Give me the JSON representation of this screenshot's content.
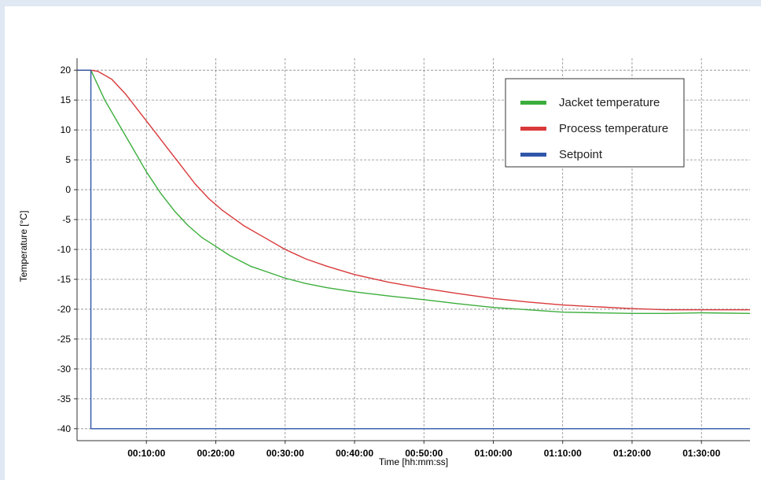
{
  "chart_data": {
    "type": "line",
    "title": "",
    "xlabel": "Time [hh:mm:ss]",
    "ylabel": "Temperature [°C]",
    "xlim": [
      "00:00:00",
      "01:37:00"
    ],
    "ylim": [
      -42,
      22
    ],
    "x_ticks": [
      "00:10:00",
      "00:20:00",
      "00:30:00",
      "00:40:00",
      "00:50:00",
      "01:00:00",
      "01:10:00",
      "01:20:00",
      "01:30:00"
    ],
    "y_ticks": [
      20,
      15,
      10,
      5,
      0,
      -5,
      -10,
      -15,
      -20,
      -25,
      -30,
      -35,
      -40
    ],
    "grid": true,
    "legend_position": "top-right",
    "series": [
      {
        "name": "Jacket temperature",
        "color": "#3cae3c",
        "x": [
          "00:00:00",
          "00:02:00",
          "00:04:00",
          "00:06:00",
          "00:08:00",
          "00:10:00",
          "00:12:00",
          "00:14:00",
          "00:16:00",
          "00:18:00",
          "00:20:00",
          "00:22:00",
          "00:25:00",
          "00:28:00",
          "00:30:00",
          "00:33:00",
          "00:36:00",
          "00:40:00",
          "00:45:00",
          "00:50:00",
          "00:55:00",
          "01:00:00",
          "01:05:00",
          "01:10:00",
          "01:15:00",
          "01:20:00",
          "01:25:00",
          "01:30:00",
          "01:37:00"
        ],
        "values": [
          20,
          20,
          15,
          11,
          7,
          3,
          -0.5,
          -3.5,
          -6,
          -8,
          -9.5,
          -11,
          -12.8,
          -14,
          -14.8,
          -15.7,
          -16.4,
          -17.1,
          -17.8,
          -18.4,
          -19.1,
          -19.7,
          -20.1,
          -20.5,
          -20.6,
          -20.7,
          -20.7,
          -20.6,
          -20.7
        ]
      },
      {
        "name": "Process temperature",
        "color": "#d9393a",
        "x": [
          "00:00:00",
          "00:02:00",
          "00:03:00",
          "00:05:00",
          "00:07:00",
          "00:09:00",
          "00:11:00",
          "00:13:00",
          "00:15:00",
          "00:17:00",
          "00:19:00",
          "00:21:00",
          "00:24:00",
          "00:27:00",
          "00:30:00",
          "00:33:00",
          "00:36:00",
          "00:40:00",
          "00:45:00",
          "00:50:00",
          "00:55:00",
          "01:00:00",
          "01:05:00",
          "01:10:00",
          "01:15:00",
          "01:20:00",
          "01:25:00",
          "01:30:00",
          "01:37:00"
        ],
        "values": [
          20,
          20,
          19.8,
          18.5,
          16,
          13,
          10,
          7,
          4,
          1,
          -1.5,
          -3.5,
          -6,
          -8,
          -10,
          -11.6,
          -12.8,
          -14.2,
          -15.5,
          -16.5,
          -17.4,
          -18.2,
          -18.8,
          -19.3,
          -19.6,
          -19.9,
          -20.1,
          -20.1,
          -20.1
        ]
      },
      {
        "name": "Setpoint",
        "color": "#2f56a8",
        "x": [
          "00:00:00",
          "00:02:00",
          "00:02:00",
          "01:37:00"
        ],
        "values": [
          20,
          20,
          -40,
          -40
        ]
      }
    ]
  }
}
